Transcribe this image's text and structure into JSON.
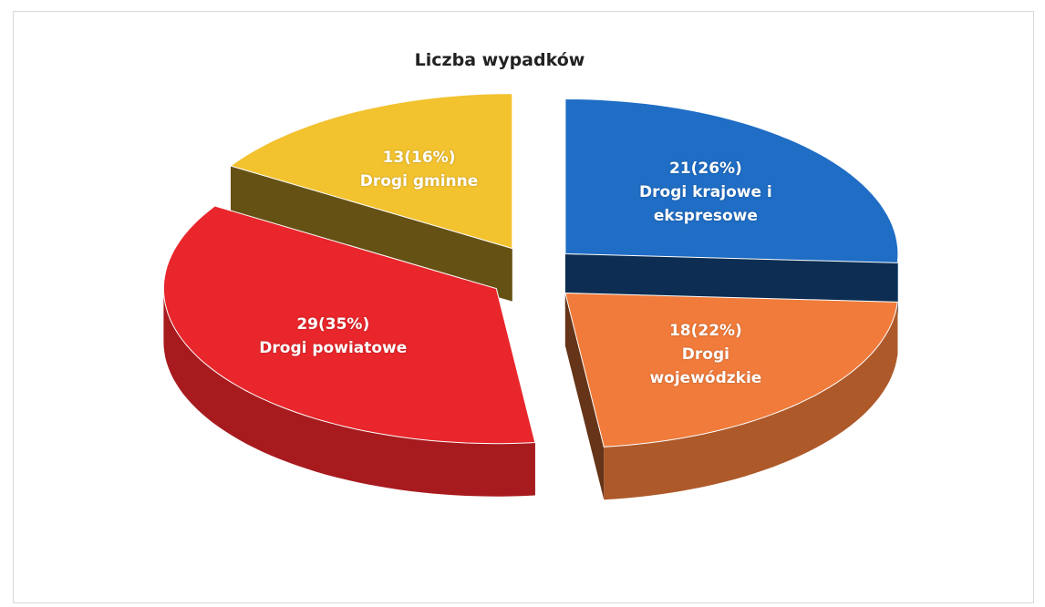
{
  "chart_data": {
    "type": "pie",
    "title": "Liczba wypadków",
    "categories": [
      "Drogi krajowe i ekspresowe",
      "Drogi wojewódzkie",
      "Drogi powiatowe",
      "Drogi gminne"
    ],
    "values": [
      21,
      18,
      29,
      13
    ],
    "value_labels": [
      "21(26%)",
      "18(22%)",
      "29(35%)",
      "13(16%)"
    ],
    "colors": [
      "#1f6dc4",
      "#f07b3b",
      "#e8262b",
      "#f2c22f"
    ]
  }
}
